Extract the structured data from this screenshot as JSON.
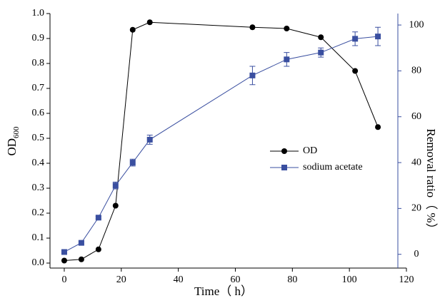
{
  "chart_data": {
    "type": "line",
    "xlabel": "Time（ h）",
    "ylabel": "OD",
    "ylabel_subscript": "600",
    "y2label": "Removal ratio（ %）",
    "x": [
      0,
      6,
      12,
      18,
      24,
      30,
      66,
      78,
      90,
      102,
      110
    ],
    "series": [
      {
        "name": "OD",
        "color": "#000000",
        "marker": "circle",
        "values": [
          0.01,
          0.015,
          0.055,
          0.23,
          0.935,
          0.965,
          0.945,
          0.94,
          0.905,
          0.77,
          0.545
        ]
      },
      {
        "name": "sodium acetate",
        "color": "#3a4fa0",
        "marker": "square",
        "axis": "y2",
        "values": [
          1,
          5,
          16,
          30,
          40,
          50,
          78,
          85,
          88,
          94,
          95
        ],
        "errors": [
          0.5,
          0.5,
          0.5,
          1.5,
          1.5,
          2,
          4,
          3,
          2,
          3,
          4
        ]
      }
    ],
    "xlim": [
      -5,
      120
    ],
    "xticks": [
      0,
      20,
      40,
      60,
      80,
      100,
      120
    ],
    "ylim": [
      -0.02,
      1.0
    ],
    "yticks": [
      {
        "value": 0,
        "label": "0.0"
      },
      0.1,
      0.2,
      0.3,
      0.4,
      0.5,
      0.6,
      0.7,
      0.8,
      0.9,
      {
        "value": 1,
        "label": "1.0"
      }
    ],
    "y2lim": [
      -6,
      105
    ],
    "y2ticks": [
      0,
      20,
      40,
      60,
      80,
      100
    ],
    "y2color": "#3a4fa0",
    "legend": "center-right"
  }
}
